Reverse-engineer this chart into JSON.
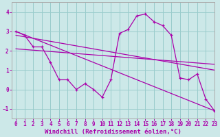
{
  "background_color": "#cce8e8",
  "grid_color": "#99cccc",
  "line_color": "#aa00aa",
  "xlabel": "Windchill (Refroidissement éolien,°C)",
  "xlim": [
    -0.5,
    23
  ],
  "ylim": [
    -1.5,
    4.5
  ],
  "yticks": [
    -1,
    0,
    1,
    2,
    3,
    4
  ],
  "xticks": [
    0,
    1,
    2,
    3,
    4,
    5,
    6,
    7,
    8,
    9,
    10,
    11,
    12,
    13,
    14,
    15,
    16,
    17,
    18,
    19,
    20,
    21,
    22,
    23
  ],
  "series1_x": [
    0,
    1,
    2,
    3,
    4,
    5,
    6,
    7,
    8,
    9,
    10,
    11,
    12,
    13,
    14,
    15,
    16,
    17,
    18,
    19,
    20,
    21,
    22,
    23
  ],
  "series1_y": [
    3.0,
    2.8,
    2.2,
    2.2,
    1.4,
    0.5,
    0.5,
    0.0,
    0.3,
    0.0,
    -0.4,
    0.5,
    2.9,
    3.1,
    3.8,
    3.9,
    3.5,
    3.3,
    2.8,
    0.6,
    0.5,
    0.8,
    -0.5,
    -1.1
  ],
  "line2_x": [
    0,
    23
  ],
  "line2_y": [
    3.0,
    -1.1
  ],
  "line3_x": [
    0,
    23
  ],
  "line3_y": [
    2.8,
    1.0
  ],
  "line4_x": [
    0,
    23
  ],
  "line4_y": [
    2.1,
    1.3
  ],
  "xlabel_fontsize": 6.5,
  "tick_fontsize": 5.5
}
